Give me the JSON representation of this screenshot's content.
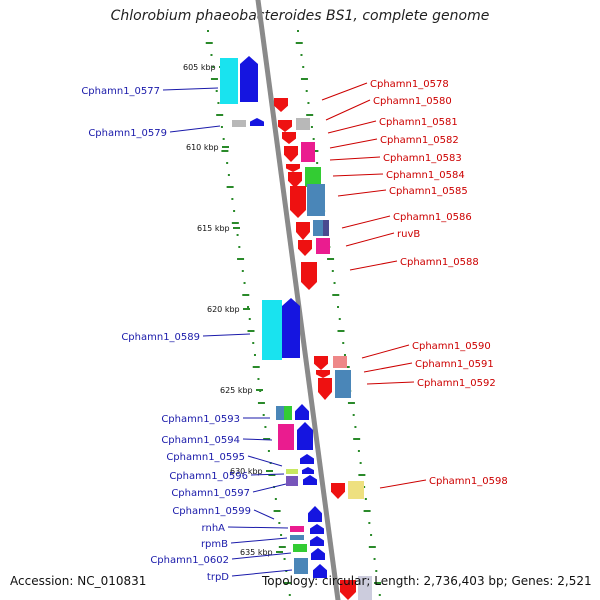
{
  "title": "Chlorobium phaeobacteroides BS1, complete genome",
  "footer": {
    "accession": "Accession: NC_010831",
    "stats": "Topology: circular; Length: 2,736,403 bp; Genes: 2,521"
  },
  "kbp_labels": [
    "605 kbp",
    "610 kbp",
    "615 kbp",
    "620 kbp",
    "625 kbp",
    "630 kbp",
    "635 kbp"
  ],
  "left_gene_labels": [
    "Cphamn1_0577",
    "Cphamn1_0579",
    "Cphamn1_0589",
    "Cphamn1_0593",
    "Cphamn1_0594",
    "Cphamn1_0595",
    "Cphamn1_0596",
    "Cphamn1_0597",
    "Cphamn1_0599",
    "rnhA",
    "rpmB",
    "Cphamn1_0602",
    "trpD"
  ],
  "right_gene_labels": [
    "Cphamn1_0578",
    "Cphamn1_0580",
    "Cphamn1_0581",
    "Cphamn1_0582",
    "Cphamn1_0583",
    "Cphamn1_0584",
    "Cphamn1_0585",
    "Cphamn1_0586",
    "ruvB",
    "Cphamn1_0588",
    "Cphamn1_0590",
    "Cphamn1_0591",
    "Cphamn1_0592",
    "Cphamn1_0598"
  ],
  "colors": {
    "left_label": "#1a1aaa",
    "right_label": "#cc0000",
    "backbone": "#8a8a8a",
    "tick": "#2a8a2a",
    "gene_red": "#ee1111",
    "gene_blue": "#1515e0",
    "gene_cyan": "#19e3ef",
    "gene_steel": "#4a86b8",
    "gene_gray": "#b8b8b8",
    "gene_magenta": "#ea1c8f",
    "gene_green": "#33cc33",
    "gene_pink": "#ee8888",
    "gene_yellow": "#eee080",
    "gene_purple": "#7755bb"
  }
}
